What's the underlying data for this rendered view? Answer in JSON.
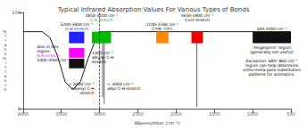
{
  "chart_data": {
    "type": "line",
    "title": "Typical Infrared Absorption Values For Various Types of Bonds",
    "x_label": "Wavenumber (cm⁻¹)",
    "y_label": "%\nT\nr\na\nn\ns\nm\ni\nt\nt\na\nn\nc\ne",
    "xlim": [
      4000,
      500
    ],
    "ylim": [
      0,
      100
    ],
    "xticks": [
      4000,
      3500,
      3000,
      2500,
      2000,
      1500,
      1000,
      500
    ],
    "yticks": [
      0,
      100
    ],
    "grid": false,
    "series": [
      {
        "x": [
          4000,
          3750
        ],
        "values": [
          80,
          80
        ],
        "color": "#000000"
      },
      {
        "x": [
          3750,
          3650,
          3550,
          3450,
          3350,
          3250,
          3150,
          3070,
          3010
        ],
        "values": [
          80,
          74,
          55,
          28,
          20,
          28,
          52,
          68,
          80
        ],
        "color": "#000000"
      },
      {
        "x": [
          3010,
          2500
        ],
        "values": [
          80,
          80
        ],
        "color": "#000000"
      },
      {
        "x": [
          2500,
          500
        ],
        "values": [
          80,
          80
        ],
        "color": "#000000"
      },
      {
        "x": [
          2940,
          2940
        ],
        "values": [
          80,
          5
        ],
        "color": "#555555"
      },
      {
        "x": [
          2960,
          2960
        ],
        "values": [
          80,
          12
        ],
        "color": "#555555"
      },
      {
        "x": [
          1730,
          1730
        ],
        "values": [
          80,
          2
        ],
        "color": "#555555"
      }
    ],
    "vertical_lines": [
      {
        "x": 3000,
        "color": "#000000",
        "line_style": "dashed"
      }
    ],
    "bars": [
      {
        "xmin": 3200,
        "xmax": 3400,
        "ymin": 68,
        "ymax": 80,
        "color": "#2222ff",
        "label": "3200-3400 cm⁻¹",
        "label_color": "#000000",
        "sublabel": "O-H stretch",
        "sublabel_color": "#2222ff"
      },
      {
        "xmin": 2850,
        "xmax": 3100,
        "ymin": 68,
        "ymax": 80,
        "color": "#00bb00",
        "label": "2850-3100 cm⁻¹",
        "label_color": "#000000",
        "sublabel": "C-H stretch",
        "sublabel_color": "#00bb00"
      },
      {
        "xmin": 2100,
        "xmax": 2260,
        "ymin": 68,
        "ymax": 80,
        "color": "#ff8800",
        "label": "2100-2260 cm⁻¹",
        "label_color": "#000000",
        "sublabel": "C≡N  C≡C",
        "sublabel_color": "#000000"
      },
      {
        "xmin": 1650,
        "xmax": 1800,
        "ymin": 68,
        "ymax": 80,
        "color": "#ee0000",
        "label": "1650-1800 cm⁻¹",
        "label_color": "#000000",
        "sublabel": "C=O stretch",
        "sublabel_color": "#000000"
      },
      {
        "xmin": 500,
        "xmax": 1000,
        "ymin": 68,
        "ymax": 80,
        "color": "#111111",
        "label": "500-1000 cm⁻¹",
        "label_color": "#000000",
        "note": "‘Fingerprint’ region\n(generally not useful)\n\nException: 680- 860 cm⁻¹\nregion can help determine\northo-meta-para substitution\npatterns for aromatics.",
        "note_color": "#000000"
      },
      {
        "xmin": 3200,
        "xmax": 3400,
        "ymin": 53,
        "ymax": 63,
        "color": "#ff00ff"
      },
      {
        "xmin": 3200,
        "xmax": 3400,
        "ymin": 42,
        "ymax": 52,
        "color": "#111111"
      }
    ],
    "annotations": [
      {
        "x": 3820,
        "y": 67,
        "parts": [
          {
            "text": "also in this\nregion:",
            "color": "#000000"
          },
          {
            "text": "N-H stretch",
            "color": "#ff00ff"
          },
          {
            "text": "3300-3500 cm⁻¹",
            "color": "#000000"
          }
        ]
      },
      {
        "x": 3100,
        "y": 60,
        "parts": [
          {
            "text": "3300 cm⁻¹\nalkyne C-H\nstretch",
            "color": "#000000"
          }
        ]
      },
      {
        "x": 3070,
        "y": 28,
        "align": "right",
        "parts": [
          {
            "text": "> 3000 cm⁻¹\nalkenyl C-H\nstretch",
            "color": "#000000"
          }
        ]
      },
      {
        "x": 2900,
        "y": 28,
        "parts": [
          {
            "text": "< 3000 cm⁻¹\nalkyl C-H stretch",
            "color": "#000000"
          }
        ]
      }
    ]
  }
}
